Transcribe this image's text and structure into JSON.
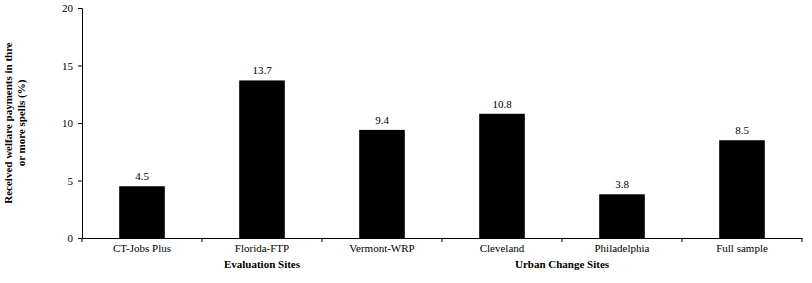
{
  "chart_data": {
    "type": "bar",
    "y_label": [
      "Received welfare payments in thre",
      "or more spells (%)"
    ],
    "categories": [
      "CT-Jobs Plus",
      "Florida-FTP",
      "Vermont-WRP",
      "Cleveland",
      "Philadelphia",
      "Full sample"
    ],
    "values": [
      4.5,
      13.7,
      9.4,
      10.8,
      3.8,
      8.5
    ],
    "color": "#000000",
    "ylim": [
      0,
      20
    ],
    "yticks": [
      0,
      5,
      10,
      15,
      20
    ],
    "grid": false,
    "data_labels": true,
    "annotations": [
      {
        "text": "Evaluation Sites",
        "from": "CT-Jobs Plus",
        "to": "Vermont-WRP"
      },
      {
        "text": "Urban Change Sites",
        "from": "Cleveland",
        "to": "Philadelphia"
      }
    ]
  }
}
